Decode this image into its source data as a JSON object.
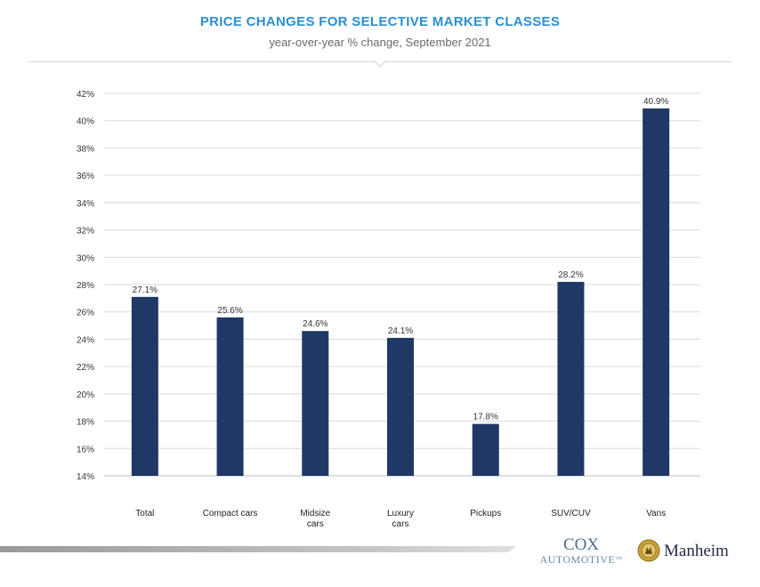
{
  "header": {
    "title": "PRICE CHANGES FOR SELECTIVE MARKET CLASSES",
    "subtitle": "year-over-year % change, September 2021"
  },
  "chart_data": {
    "type": "bar",
    "title": "PRICE CHANGES FOR SELECTIVE MARKET CLASSES",
    "subtitle": "year-over-year % change, September 2021",
    "categories": [
      [
        "Total"
      ],
      [
        "Compact cars"
      ],
      [
        "Midsize",
        "cars"
      ],
      [
        "Luxury",
        "cars"
      ],
      [
        "Pickups"
      ],
      [
        "SUV/CUV"
      ],
      [
        "Vans"
      ]
    ],
    "values": [
      27.1,
      25.6,
      24.6,
      24.1,
      17.8,
      28.2,
      40.9
    ],
    "value_labels": [
      "27.1%",
      "25.6%",
      "24.6%",
      "24.1%",
      "17.8%",
      "28.2%",
      "40.9%"
    ],
    "ylim": [
      14,
      42
    ],
    "yticks": [
      14,
      16,
      18,
      20,
      22,
      24,
      26,
      28,
      30,
      32,
      34,
      36,
      38,
      40,
      42
    ],
    "ytick_suffix": "%",
    "grid": true,
    "bar_color": "#1f3866",
    "xlabel": "",
    "ylabel": ""
  },
  "footer": {
    "cox_line1": "COX",
    "cox_line2": "AUTOMOTIVE",
    "cox_tm": "™",
    "manheim": "Manheim"
  },
  "colors": {
    "title": "#2b8fcf",
    "bar": "#1f3866",
    "grid": "#d9d9d9"
  }
}
